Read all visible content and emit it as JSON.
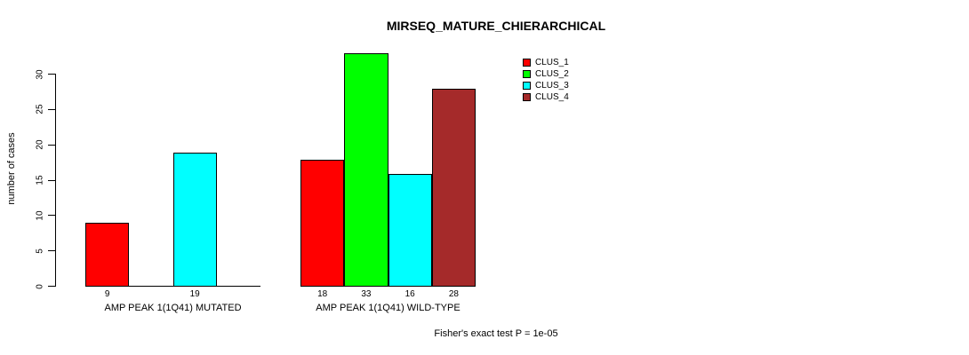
{
  "chart_data": {
    "type": "bar",
    "title": "MIRSEQ_MATURE_CHIERARCHICAL",
    "ylabel": "number of cases",
    "xlabel": "",
    "ylim": [
      0,
      30
    ],
    "yticks": [
      0,
      5,
      10,
      15,
      20,
      25,
      30
    ],
    "grid": false,
    "legend_position": "top-right",
    "series_names": [
      "CLUS_1",
      "CLUS_2",
      "CLUS_3",
      "CLUS_4"
    ],
    "series_colors": [
      "#ff0000",
      "#00ff00",
      "#00ffff",
      "#a52a2a"
    ],
    "groups": [
      {
        "label": "AMP PEAK 1(1Q41) MUTATED",
        "values": [
          9,
          0,
          19,
          0
        ],
        "bar_labels": [
          "9",
          "",
          "19",
          ""
        ]
      },
      {
        "label": "AMP PEAK 1(1Q41) WILD-TYPE",
        "values": [
          18,
          33,
          16,
          28
        ],
        "bar_labels": [
          "18",
          "33",
          "16",
          "28"
        ]
      }
    ],
    "annotation": "Fisher's exact test P = 1e-05"
  },
  "legend": {
    "items": [
      {
        "label": "CLUS_1",
        "color": "#ff0000"
      },
      {
        "label": "CLUS_2",
        "color": "#00ff00"
      },
      {
        "label": "CLUS_3",
        "color": "#00ffff"
      },
      {
        "label": "CLUS_4",
        "color": "#a52a2a"
      }
    ]
  }
}
